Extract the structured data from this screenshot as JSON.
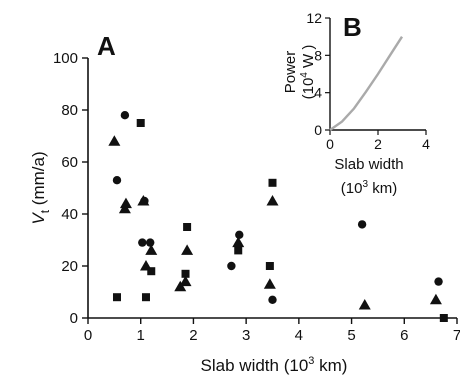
{
  "chart_data": [
    {
      "panel": "A",
      "type": "scatter",
      "xlabel_main": "Slab width (10",
      "xlabel_sup": "3",
      "xlabel_tail": " km)",
      "ylabel_var": "V",
      "ylabel_sub": "t",
      "ylabel_unit": " (mm/a)",
      "xlim": [
        0,
        7
      ],
      "ylim": [
        0,
        100
      ],
      "xticks": [
        0,
        1,
        2,
        3,
        4,
        5,
        6,
        7
      ],
      "yticks": [
        0,
        20,
        40,
        60,
        80,
        100
      ],
      "grid": false,
      "series": [
        {
          "marker": "circle",
          "points": [
            [
              0.55,
              53
            ],
            [
              0.7,
              78
            ],
            [
              1.03,
              29
            ],
            [
              1.07,
              45
            ],
            [
              1.18,
              29
            ],
            [
              2.72,
              20
            ],
            [
              2.85,
              28
            ],
            [
              2.87,
              32
            ],
            [
              3.5,
              7
            ],
            [
              5.2,
              36
            ],
            [
              6.65,
              14
            ]
          ]
        },
        {
          "marker": "square",
          "points": [
            [
              0.55,
              8
            ],
            [
              1.0,
              75
            ],
            [
              1.1,
              8
            ],
            [
              1.2,
              18
            ],
            [
              1.85,
              17
            ],
            [
              1.88,
              35
            ],
            [
              2.85,
              26
            ],
            [
              3.45,
              20
            ],
            [
              3.5,
              52
            ],
            [
              6.75,
              0
            ]
          ]
        },
        {
          "marker": "triangle",
          "points": [
            [
              0.5,
              68
            ],
            [
              0.7,
              42
            ],
            [
              0.72,
              44
            ],
            [
              1.05,
              45
            ],
            [
              1.1,
              20
            ],
            [
              1.2,
              26
            ],
            [
              1.75,
              12
            ],
            [
              1.85,
              14
            ],
            [
              1.88,
              26
            ],
            [
              2.85,
              29
            ],
            [
              3.45,
              13
            ],
            [
              3.5,
              45
            ],
            [
              5.25,
              5
            ],
            [
              6.6,
              7
            ]
          ]
        }
      ]
    },
    {
      "panel": "B",
      "type": "line",
      "ylabel_main": "Power",
      "ylabel_sub_open": "(10",
      "ylabel_sup": "4",
      "ylabel_sub_close": " W )",
      "xlabel_line1": "Slab width",
      "xlabel_line2_open": "(10",
      "xlabel_line2_sup": "3",
      "xlabel_line2_close": " km)",
      "xlim": [
        0,
        4
      ],
      "ylim": [
        0,
        12
      ],
      "xticks": [
        0,
        2,
        4
      ],
      "yticks": [
        0,
        4,
        8,
        12
      ],
      "color": "#aaaaaa",
      "series": [
        {
          "x": [
            0,
            0.5,
            1.0,
            1.5,
            2.0,
            2.5,
            3.0
          ],
          "y": [
            0,
            0.9,
            2.3,
            4.1,
            6.0,
            8.0,
            10.0
          ]
        }
      ]
    }
  ]
}
